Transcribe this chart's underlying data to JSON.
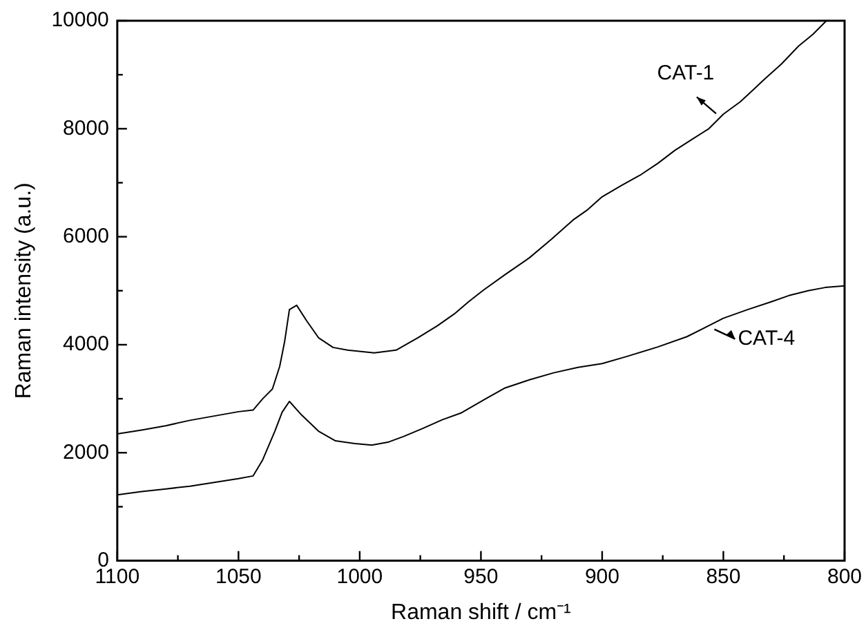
{
  "chart_data": {
    "type": "line",
    "xlabel": "Raman shift / cm⁻¹",
    "ylabel": "Raman intensity (a.u.)",
    "xlim": [
      1100,
      800
    ],
    "xticks": [
      1100,
      1050,
      1000,
      950,
      900,
      850,
      800
    ],
    "ylim": [
      0,
      10000
    ],
    "yticks": [
      0,
      2000,
      4000,
      6000,
      8000,
      10000
    ],
    "grid": false,
    "legend": false,
    "marker": "none",
    "line_style": "solid",
    "series": [
      {
        "color": "#000000",
        "x": [
          1100,
          1090,
          1080,
          1070,
          1060,
          1050,
          1044,
          1040,
          1036,
          1033,
          1031,
          1029,
          1026,
          1022,
          1017,
          1011,
          1005,
          994,
          985,
          976,
          968,
          961,
          955,
          949,
          940,
          930,
          921,
          912,
          906,
          900,
          892,
          884,
          877,
          870,
          863,
          856,
          850,
          843,
          837,
          833,
          826,
          819,
          813,
          807.5
        ],
        "values": [
          2350,
          2420,
          2500,
          2600,
          2680,
          2760,
          2790,
          3000,
          3180,
          3600,
          4050,
          4650,
          4730,
          4450,
          4130,
          3950,
          3900,
          3850,
          3900,
          4130,
          4350,
          4570,
          4800,
          5010,
          5300,
          5610,
          5950,
          6310,
          6500,
          6740,
          6950,
          7150,
          7360,
          7600,
          7800,
          8000,
          8270,
          8500,
          8750,
          8920,
          9200,
          9530,
          9750,
          10000
        ]
      },
      {
        "color": "#000000",
        "x": [
          1100,
          1090,
          1080,
          1070,
          1060,
          1050,
          1044,
          1040,
          1035,
          1032,
          1029,
          1024,
          1017,
          1010,
          1002,
          995,
          988,
          982,
          974,
          966,
          958,
          948,
          940,
          930,
          920,
          910,
          900,
          890,
          877,
          865,
          850,
          840,
          830,
          823,
          815,
          808,
          800
        ],
        "values": [
          1220,
          1280,
          1330,
          1380,
          1450,
          1520,
          1570,
          1870,
          2400,
          2750,
          2950,
          2700,
          2400,
          2220,
          2170,
          2140,
          2200,
          2300,
          2450,
          2610,
          2740,
          3000,
          3200,
          3350,
          3480,
          3580,
          3650,
          3780,
          3960,
          4150,
          4490,
          4650,
          4800,
          4910,
          5000,
          5060,
          5090
        ]
      }
    ],
    "annotations": [
      {
        "text": "CAT-1",
        "x": 853,
        "y": 8280
      },
      {
        "text": "CAT-4",
        "x": 852,
        "y": 4440
      }
    ]
  }
}
